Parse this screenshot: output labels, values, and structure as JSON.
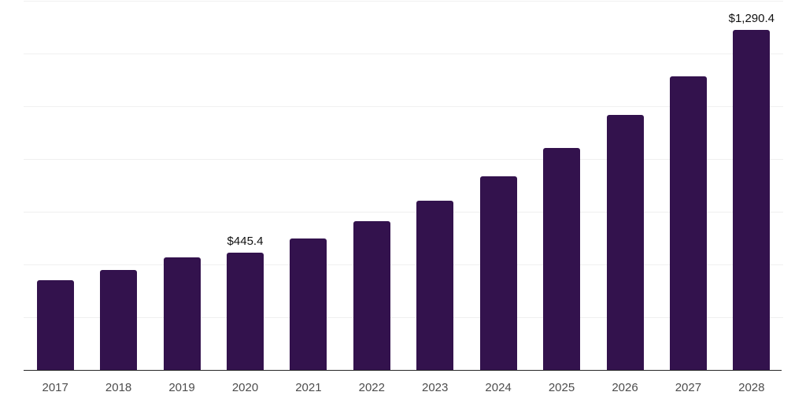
{
  "chart_data": {
    "type": "bar",
    "title": "",
    "xlabel": "",
    "ylabel": "",
    "categories": [
      "2017",
      "2018",
      "2019",
      "2020",
      "2021",
      "2022",
      "2023",
      "2024",
      "2025",
      "2026",
      "2027",
      "2028"
    ],
    "values": [
      340,
      380,
      426,
      445.4,
      498,
      565,
      643,
      733,
      841,
      968,
      1114,
      1290.4
    ],
    "data_labels": {
      "2020": "$445.4",
      "2028": "$1,290.4"
    },
    "ylim": [
      0,
      1400
    ],
    "grid_step": 200,
    "grid": "on",
    "legend": "none",
    "colors": {
      "bar": "#33124D",
      "gridline": "#f0f0f0",
      "axis_line": "#262626",
      "tick_label": "#4d4d4d",
      "value_label": "#111111",
      "background": "#ffffff"
    }
  }
}
